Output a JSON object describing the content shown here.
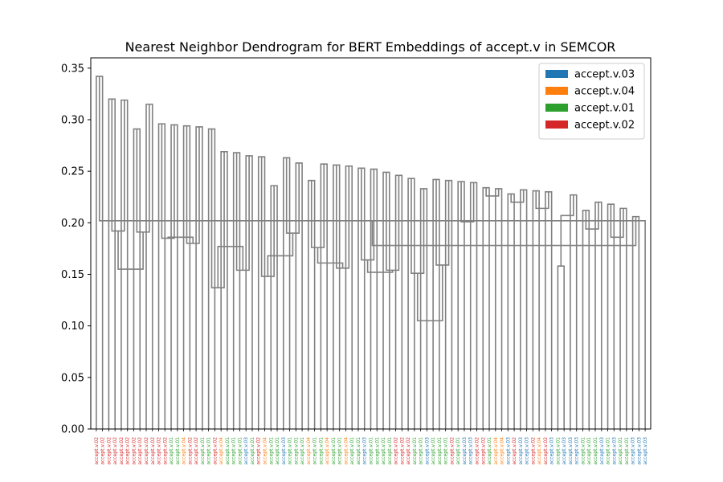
{
  "chart_data": {
    "type": "dendrogram",
    "title": "Nearest Neighbor Dendrogram for BERT Embeddings of accept.v in SEMCOR",
    "xlabel": "",
    "ylabel": "",
    "ylim": [
      0,
      0.36
    ],
    "yticks": [
      "0.00",
      "0.05",
      "0.10",
      "0.15",
      "0.20",
      "0.25",
      "0.30",
      "0.35"
    ],
    "ytick_values": [
      0,
      0.05,
      0.1,
      0.15,
      0.2,
      0.25,
      0.3,
      0.35
    ],
    "link_color": "#808080",
    "legend": {
      "position": "top-right",
      "entries": [
        {
          "label": "accept.v.03",
          "color": "#1f77b4"
        },
        {
          "label": "accept.v.04",
          "color": "#ff7f0e"
        },
        {
          "label": "accept.v.01",
          "color": "#2ca02c"
        },
        {
          "label": "accept.v.02",
          "color": "#d62728"
        }
      ]
    },
    "sense_colors": {
      "accept.v.01": "#2ca02c",
      "accept.v.02": "#d62728",
      "accept.v.03": "#1f77b4",
      "accept.v.04": "#ff7f0e"
    },
    "leaves": [
      "accept.v.02",
      "accept.v.02",
      "accept.v.02",
      "accept.v.02",
      "accept.v.02",
      "accept.v.02",
      "accept.v.02",
      "accept.v.02",
      "accept.v.02",
      "accept.v.02",
      "accept.v.02",
      "accept.v.02",
      "accept.v.01",
      "accept.v.01",
      "accept.v.04",
      "accept.v.02",
      "accept.v.02",
      "accept.v.01",
      "accept.v.01",
      "accept.v.02",
      "accept.v.04",
      "accept.v.01",
      "accept.v.01",
      "accept.v.01",
      "accept.v.03",
      "accept.v.01",
      "accept.v.02",
      "accept.v.04",
      "accept.v.01",
      "accept.v.01",
      "accept.v.03",
      "accept.v.01",
      "accept.v.01",
      "accept.v.01",
      "accept.v.04",
      "accept.v.01",
      "accept.v.01",
      "accept.v.04",
      "accept.v.01",
      "accept.v.01",
      "accept.v.04",
      "accept.v.01",
      "accept.v.01",
      "accept.v.03",
      "accept.v.01",
      "accept.v.01",
      "accept.v.01",
      "accept.v.01",
      "accept.v.02",
      "accept.v.02",
      "accept.v.02",
      "accept.v.01",
      "accept.v.01",
      "accept.v.03",
      "accept.v.01",
      "accept.v.01",
      "accept.v.01",
      "accept.v.02",
      "accept.v.01",
      "accept.v.03",
      "accept.v.03",
      "accept.v.02",
      "accept.v.02",
      "accept.v.01",
      "accept.v.04",
      "accept.v.04",
      "accept.v.03",
      "accept.v.02",
      "accept.v.03",
      "accept.v.03",
      "accept.v.02",
      "accept.v.04",
      "accept.v.02",
      "accept.v.03",
      "accept.v.01",
      "accept.v.03",
      "accept.v.03",
      "accept.v.03",
      "accept.v.01",
      "accept.v.01",
      "accept.v.01",
      "accept.v.03",
      "accept.v.01",
      "accept.v.03",
      "accept.v.01",
      "accept.v.01",
      "accept.v.03",
      "accept.v.03",
      "accept.v.03"
    ],
    "merges": [
      [
        0,
        1,
        0.342
      ],
      [
        2,
        3,
        0.32
      ],
      [
        4,
        5,
        0.319
      ],
      [
        6,
        7,
        0.291
      ],
      [
        8,
        9,
        0.315
      ],
      [
        10,
        11,
        0.296
      ],
      [
        12,
        13,
        0.295
      ],
      [
        14,
        15,
        0.294
      ],
      [
        16,
        17,
        0.293
      ],
      [
        18,
        19,
        0.291
      ],
      [
        20,
        21,
        0.269
      ],
      [
        22,
        23,
        0.268
      ],
      [
        24,
        25,
        0.265
      ],
      [
        26,
        27,
        0.264
      ],
      [
        28,
        29,
        0.236
      ],
      [
        30,
        31,
        0.263
      ],
      [
        32,
        33,
        0.258
      ],
      [
        34,
        35,
        0.241
      ],
      [
        36,
        37,
        0.257
      ],
      [
        38,
        39,
        0.256
      ],
      [
        40,
        41,
        0.255
      ],
      [
        42,
        43,
        0.253
      ],
      [
        44,
        45,
        0.252
      ],
      [
        46,
        47,
        0.249
      ],
      [
        48,
        49,
        0.246
      ],
      [
        50,
        51,
        0.243
      ],
      [
        52,
        53,
        0.233
      ],
      [
        54,
        55,
        0.242
      ],
      [
        56,
        57,
        0.241
      ],
      [
        58,
        59,
        0.24
      ],
      [
        60,
        61,
        0.239
      ],
      [
        62,
        63,
        0.234
      ],
      [
        64,
        65,
        0.233
      ],
      [
        66,
        67,
        0.228
      ],
      [
        68,
        69,
        0.232
      ],
      [
        70,
        71,
        0.231
      ],
      [
        72,
        73,
        0.23
      ],
      [
        74,
        75,
        0.158
      ],
      [
        76,
        77,
        0.227
      ],
      [
        78,
        79,
        0.212
      ],
      [
        80,
        81,
        0.22
      ],
      [
        82,
        83,
        0.218
      ],
      [
        84,
        85,
        0.214
      ],
      [
        86,
        87,
        0.206
      ],
      [
        88,
        89,
        0.202
      ],
      [
        90,
        91,
        0.192
      ],
      [
        92,
        93,
        0.191
      ],
      [
        94,
        95,
        0.185
      ],
      [
        96,
        97,
        0.18
      ],
      [
        98,
        99,
        0.137
      ],
      [
        100,
        101,
        0.154
      ],
      [
        102,
        103,
        0.148
      ],
      [
        104,
        105,
        0.19
      ],
      [
        106,
        107,
        0.176
      ],
      [
        108,
        109,
        0.156
      ],
      [
        110,
        111,
        0.164
      ],
      [
        112,
        113,
        0.154
      ],
      [
        114,
        115,
        0.151
      ],
      [
        116,
        117,
        0.159
      ],
      [
        118,
        119,
        0.201
      ],
      [
        120,
        121,
        0.226
      ],
      [
        122,
        123,
        0.22
      ],
      [
        124,
        125,
        0.214
      ],
      [
        126,
        127,
        0.207
      ],
      [
        128,
        129,
        0.194
      ],
      [
        130,
        131,
        0.186
      ],
      [
        132,
        133,
        0.178
      ],
      [
        134,
        135,
        0.155
      ],
      [
        136,
        137,
        0.186
      ],
      [
        138,
        139,
        0.177
      ],
      [
        140,
        141,
        0.168
      ],
      [
        142,
        143,
        0.161
      ],
      [
        144,
        145,
        0.152
      ],
      [
        146,
        147,
        0.105
      ]
    ]
  }
}
